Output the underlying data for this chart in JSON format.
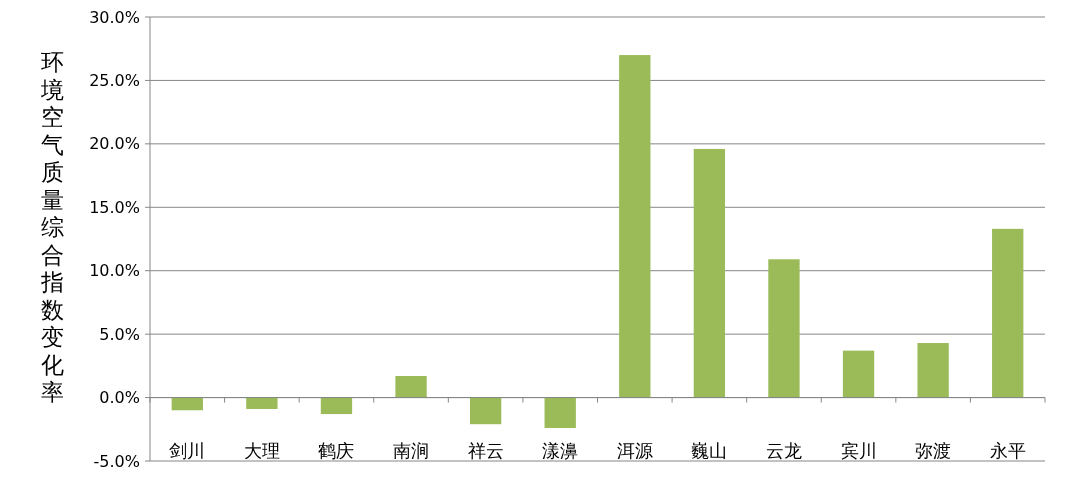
{
  "chart_data": {
    "type": "bar",
    "ylabel": "环境空气质量综合指数变化率",
    "categories": [
      "剑川",
      "大理",
      "鹤庆",
      "南涧",
      "祥云",
      "漾濞",
      "洱源",
      "巍山",
      "云龙",
      "宾川",
      "弥渡",
      "永平"
    ],
    "values": [
      -1.0,
      -0.9,
      -1.3,
      1.7,
      -2.1,
      -2.4,
      27.0,
      19.6,
      10.9,
      3.7,
      4.3,
      13.3
    ],
    "color": "#9bbb59",
    "ylim": [
      -5,
      30
    ],
    "yticks": [
      {
        "value": -5,
        "label": "-5.0%"
      },
      {
        "value": 0,
        "label": "0.0%"
      },
      {
        "value": 5,
        "label": "5.0%"
      },
      {
        "value": 10,
        "label": "10.0%"
      },
      {
        "value": 15,
        "label": "15.0%"
      },
      {
        "value": 20,
        "label": "20.0%"
      },
      {
        "value": 25,
        "label": "25.0%"
      },
      {
        "value": 30,
        "label": "30.0%"
      }
    ],
    "grid": "y"
  }
}
